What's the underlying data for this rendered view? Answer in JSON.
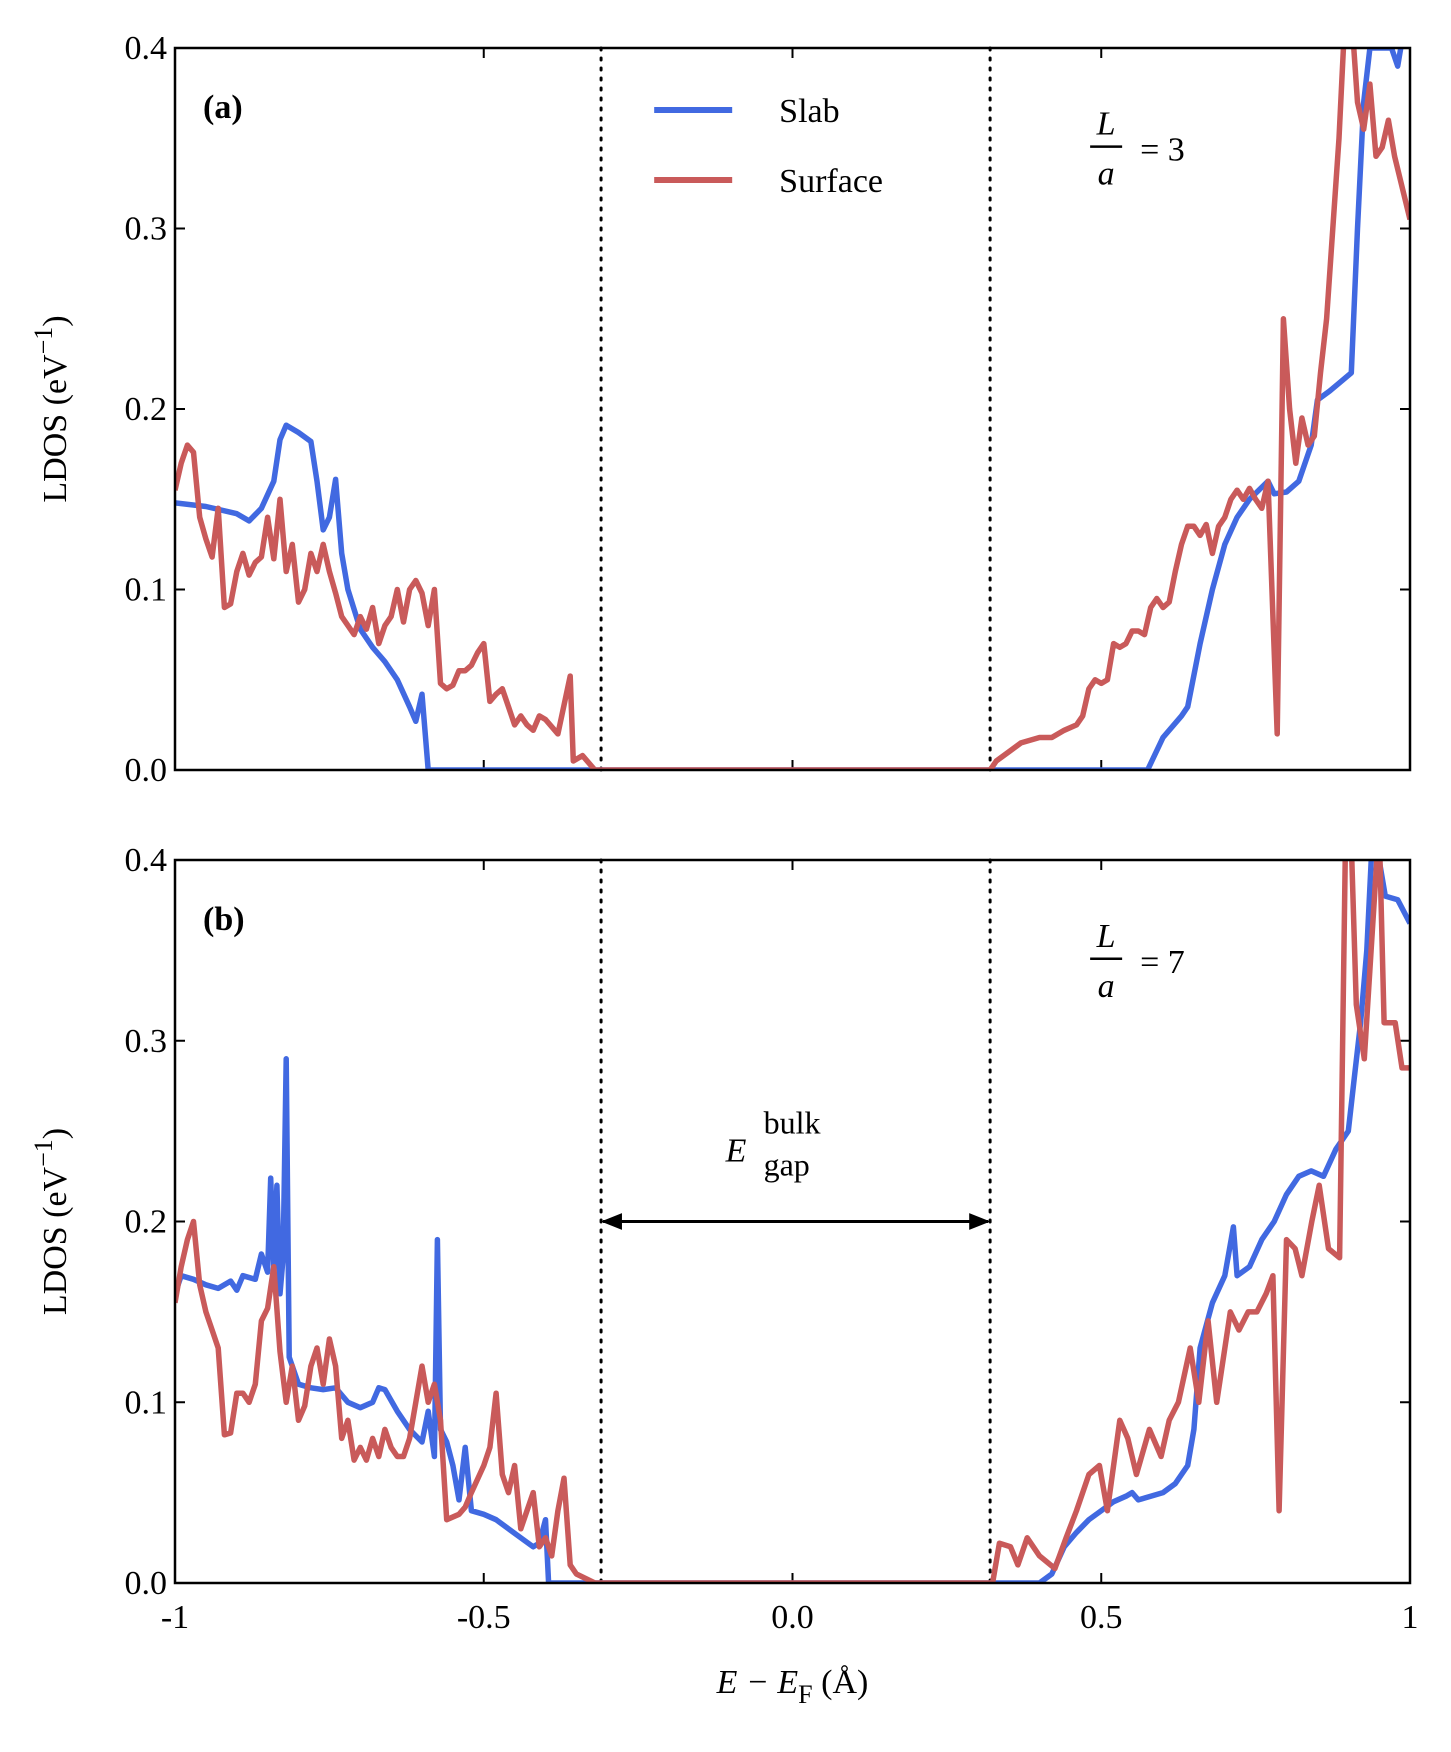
{
  "chart_data": [
    {
      "type": "line",
      "panel_label": "(a)",
      "annotation": {
        "numerator": "L",
        "denominator": "a",
        "text": "= 3"
      },
      "ylabel": [
        "LDOS (eV",
        "−1",
        ")"
      ],
      "xlim": [
        -1,
        1
      ],
      "ylim": [
        0,
        0.4
      ],
      "xticks": [
        -1,
        -0.5,
        0,
        0.5,
        1
      ],
      "yticks": [
        {
          "value": 0,
          "label": "0.0"
        },
        0.1,
        0.2,
        0.3,
        0.4
      ],
      "vlines": [
        -0.31,
        0.32
      ],
      "legend": "upper center",
      "series": [
        {
          "name": "Slab",
          "color": "#4169e1",
          "x": [
            -1,
            -0.95,
            -0.9,
            -0.88,
            -0.86,
            -0.84,
            -0.83,
            -0.82,
            -0.8,
            -0.78,
            -0.77,
            -0.76,
            -0.75,
            -0.74,
            -0.73,
            -0.72,
            -0.7,
            -0.68,
            -0.66,
            -0.64,
            -0.62,
            -0.61,
            -0.6,
            -0.59,
            -0.3,
            0,
            0.3,
            0.575,
            0.6,
            0.63,
            0.64,
            0.66,
            0.68,
            0.7,
            0.72,
            0.74,
            0.77,
            0.78,
            0.8,
            0.82,
            0.84,
            0.85,
            0.87,
            0.905,
            0.915,
            0.925,
            0.935,
            0.97,
            0.98,
            0.99
          ],
          "values": [
            0.148,
            0.146,
            0.142,
            0.138,
            0.145,
            0.16,
            0.183,
            0.191,
            0.187,
            0.182,
            0.16,
            0.133,
            0.14,
            0.161,
            0.12,
            0.1,
            0.078,
            0.068,
            0.06,
            0.05,
            0.035,
            0.027,
            0.042,
            0,
            0,
            0,
            0,
            0,
            0.018,
            0.03,
            0.035,
            0.07,
            0.1,
            0.125,
            0.14,
            0.15,
            0.16,
            0.153,
            0.154,
            0.16,
            0.18,
            0.205,
            0.21,
            0.22,
            0.3,
            0.37,
            0.4,
            0.4,
            0.39,
            0.41
          ]
        },
        {
          "name": "Surface",
          "color": "#c95a5a",
          "x": [
            -1,
            -0.99,
            -0.98,
            -0.97,
            -0.96,
            -0.95,
            -0.94,
            -0.93,
            -0.92,
            -0.91,
            -0.9,
            -0.89,
            -0.88,
            -0.87,
            -0.86,
            -0.85,
            -0.84,
            -0.83,
            -0.82,
            -0.81,
            -0.8,
            -0.79,
            -0.78,
            -0.77,
            -0.76,
            -0.75,
            -0.74,
            -0.73,
            -0.72,
            -0.71,
            -0.7,
            -0.69,
            -0.68,
            -0.67,
            -0.66,
            -0.65,
            -0.64,
            -0.63,
            -0.62,
            -0.61,
            -0.6,
            -0.59,
            -0.58,
            -0.57,
            -0.56,
            -0.55,
            -0.54,
            -0.53,
            -0.52,
            -0.51,
            -0.5,
            -0.49,
            -0.48,
            -0.47,
            -0.46,
            -0.45,
            -0.44,
            -0.43,
            -0.42,
            -0.41,
            -0.4,
            -0.38,
            -0.36,
            -0.355,
            -0.34,
            -0.32,
            0.32,
            0.33,
            0.35,
            0.37,
            0.4,
            0.42,
            0.44,
            0.46,
            0.47,
            0.48,
            0.49,
            0.5,
            0.51,
            0.52,
            0.53,
            0.54,
            0.55,
            0.56,
            0.57,
            0.58,
            0.59,
            0.6,
            0.61,
            0.62,
            0.63,
            0.64,
            0.65,
            0.66,
            0.67,
            0.68,
            0.69,
            0.7,
            0.71,
            0.72,
            0.73,
            0.74,
            0.75,
            0.76,
            0.77,
            0.785,
            0.795,
            0.805,
            0.815,
            0.825,
            0.835,
            0.845,
            0.855,
            0.865,
            0.875,
            0.885,
            0.895,
            0.905,
            0.915,
            0.925,
            0.935,
            0.945,
            0.955,
            0.965,
            0.975,
            1
          ],
          "values": [
            0.155,
            0.17,
            0.18,
            0.176,
            0.14,
            0.128,
            0.118,
            0.145,
            0.09,
            0.092,
            0.11,
            0.12,
            0.108,
            0.115,
            0.118,
            0.14,
            0.117,
            0.15,
            0.11,
            0.125,
            0.093,
            0.1,
            0.12,
            0.11,
            0.125,
            0.11,
            0.098,
            0.085,
            0.08,
            0.075,
            0.085,
            0.078,
            0.09,
            0.07,
            0.08,
            0.085,
            0.1,
            0.082,
            0.1,
            0.105,
            0.098,
            0.08,
            0.1,
            0.048,
            0.045,
            0.047,
            0.055,
            0.055,
            0.058,
            0.065,
            0.07,
            0.038,
            0.042,
            0.045,
            0.035,
            0.025,
            0.03,
            0.025,
            0.022,
            0.03,
            0.028,
            0.02,
            0.052,
            0.005,
            0.008,
            0,
            0,
            0.005,
            0.01,
            0.015,
            0.018,
            0.018,
            0.022,
            0.025,
            0.03,
            0.045,
            0.05,
            0.048,
            0.05,
            0.07,
            0.068,
            0.07,
            0.077,
            0.077,
            0.075,
            0.09,
            0.095,
            0.09,
            0.093,
            0.11,
            0.125,
            0.135,
            0.135,
            0.13,
            0.136,
            0.12,
            0.135,
            0.14,
            0.15,
            0.155,
            0.15,
            0.156,
            0.15,
            0.145,
            0.16,
            0.02,
            0.25,
            0.2,
            0.17,
            0.195,
            0.18,
            0.185,
            0.22,
            0.25,
            0.3,
            0.35,
            0.42,
            0.42,
            0.37,
            0.355,
            0.38,
            0.34,
            0.345,
            0.36,
            0.34,
            0.305
          ]
        }
      ]
    },
    {
      "type": "line",
      "panel_label": "(b)",
      "annotation": {
        "numerator": "L",
        "denominator": "a",
        "text": "= 7"
      },
      "ylabel": [
        "LDOS (eV",
        "−1",
        ")"
      ],
      "xlabel": [
        "E − E",
        "F",
        " (Å)"
      ],
      "xlim": [
        -1,
        1
      ],
      "ylim": [
        0,
        0.4
      ],
      "xticks": [
        -1,
        -0.5,
        {
          "value": 0,
          "label": "0.0"
        },
        0.5,
        1
      ],
      "yticks": [
        {
          "value": 0,
          "label": "0.0"
        },
        0.1,
        0.2,
        0.3,
        0.4
      ],
      "vlines": [
        -0.31,
        0.32
      ],
      "gap_arrow": {
        "y": 0.2,
        "label": [
          "E",
          "gap",
          "bulk"
        ]
      },
      "series": [
        {
          "color": "#4169e1",
          "x": [
            -1,
            -0.99,
            -0.97,
            -0.95,
            -0.93,
            -0.91,
            -0.9,
            -0.89,
            -0.87,
            -0.86,
            -0.85,
            -0.845,
            -0.84,
            -0.835,
            -0.83,
            -0.825,
            -0.82,
            -0.815,
            -0.81,
            -0.8,
            -0.78,
            -0.76,
            -0.74,
            -0.72,
            -0.7,
            -0.68,
            -0.67,
            -0.66,
            -0.64,
            -0.62,
            -0.6,
            -0.59,
            -0.58,
            -0.575,
            -0.57,
            -0.56,
            -0.55,
            -0.54,
            -0.53,
            -0.52,
            -0.5,
            -0.48,
            -0.46,
            -0.44,
            -0.42,
            -0.41,
            -0.4,
            -0.395,
            0,
            0.4,
            0.42,
            0.44,
            0.46,
            0.48,
            0.5,
            0.52,
            0.54,
            0.55,
            0.56,
            0.58,
            0.6,
            0.62,
            0.64,
            0.65,
            0.66,
            0.68,
            0.7,
            0.714,
            0.72,
            0.74,
            0.76,
            0.78,
            0.8,
            0.82,
            0.84,
            0.86,
            0.88,
            0.9,
            0.91,
            0.92,
            0.93,
            0.94,
            0.96,
            0.98,
            1
          ],
          "values": [
            0.16,
            0.17,
            0.168,
            0.165,
            0.163,
            0.167,
            0.162,
            0.17,
            0.168,
            0.182,
            0.172,
            0.224,
            0.175,
            0.22,
            0.16,
            0.18,
            0.29,
            0.125,
            0.12,
            0.11,
            0.108,
            0.107,
            0.108,
            0.1,
            0.097,
            0.1,
            0.108,
            0.107,
            0.095,
            0.085,
            0.078,
            0.095,
            0.07,
            0.19,
            0.085,
            0.078,
            0.065,
            0.046,
            0.075,
            0.04,
            0.038,
            0.035,
            0.03,
            0.025,
            0.02,
            0.022,
            0.035,
            0,
            0,
            0,
            0.005,
            0.02,
            0.028,
            0.035,
            0.04,
            0.045,
            0.048,
            0.05,
            0.046,
            0.048,
            0.05,
            0.055,
            0.065,
            0.085,
            0.13,
            0.155,
            0.17,
            0.197,
            0.17,
            0.175,
            0.19,
            0.2,
            0.215,
            0.225,
            0.228,
            0.225,
            0.24,
            0.25,
            0.28,
            0.31,
            0.35,
            0.42,
            0.38,
            0.378,
            0.365
          ]
        },
        {
          "color": "#c95a5a",
          "x": [
            -1,
            -0.99,
            -0.98,
            -0.97,
            -0.96,
            -0.95,
            -0.94,
            -0.93,
            -0.92,
            -0.91,
            -0.9,
            -0.89,
            -0.88,
            -0.87,
            -0.86,
            -0.85,
            -0.84,
            -0.83,
            -0.82,
            -0.81,
            -0.8,
            -0.79,
            -0.78,
            -0.77,
            -0.76,
            -0.75,
            -0.74,
            -0.73,
            -0.72,
            -0.71,
            -0.7,
            -0.69,
            -0.68,
            -0.67,
            -0.66,
            -0.65,
            -0.64,
            -0.63,
            -0.62,
            -0.61,
            -0.6,
            -0.59,
            -0.58,
            -0.57,
            -0.56,
            -0.54,
            -0.53,
            -0.52,
            -0.5,
            -0.49,
            -0.48,
            -0.47,
            -0.46,
            -0.45,
            -0.44,
            -0.43,
            -0.42,
            -0.41,
            -0.4,
            -0.39,
            -0.38,
            -0.37,
            -0.36,
            -0.35,
            -0.32,
            0.324,
            0.335,
            0.353,
            0.365,
            0.38,
            0.4,
            0.425,
            0.443,
            0.46,
            0.48,
            0.497,
            0.51,
            0.53,
            0.543,
            0.557,
            0.578,
            0.597,
            0.61,
            0.625,
            0.644,
            0.658,
            0.673,
            0.687,
            0.709,
            0.723,
            0.738,
            0.752,
            0.767,
            0.778,
            0.788,
            0.8,
            0.814,
            0.825,
            0.841,
            0.853,
            0.868,
            0.886,
            0.895,
            0.904,
            0.913,
            0.926,
            0.937,
            0.95,
            0.958,
            0.976,
            0.987,
            1
          ],
          "values": [
            0.155,
            0.175,
            0.19,
            0.2,
            0.165,
            0.15,
            0.14,
            0.13,
            0.082,
            0.083,
            0.105,
            0.105,
            0.1,
            0.11,
            0.145,
            0.152,
            0.175,
            0.128,
            0.1,
            0.12,
            0.09,
            0.098,
            0.12,
            0.13,
            0.11,
            0.135,
            0.12,
            0.08,
            0.09,
            0.068,
            0.075,
            0.068,
            0.08,
            0.07,
            0.085,
            0.075,
            0.07,
            0.07,
            0.08,
            0.1,
            0.12,
            0.1,
            0.11,
            0.09,
            0.035,
            0.038,
            0.042,
            0.05,
            0.065,
            0.075,
            0.105,
            0.06,
            0.05,
            0.065,
            0.03,
            0.04,
            0.05,
            0.02,
            0.025,
            0.015,
            0.04,
            0.058,
            0.01,
            0.005,
            0,
            0,
            0.022,
            0.02,
            0.01,
            0.025,
            0.015,
            0.008,
            0.025,
            0.04,
            0.06,
            0.065,
            0.04,
            0.09,
            0.08,
            0.06,
            0.085,
            0.07,
            0.09,
            0.1,
            0.13,
            0.1,
            0.145,
            0.1,
            0.15,
            0.14,
            0.15,
            0.15,
            0.16,
            0.17,
            0.04,
            0.19,
            0.185,
            0.17,
            0.2,
            0.22,
            0.185,
            0.18,
            0.4,
            0.42,
            0.32,
            0.29,
            0.35,
            0.42,
            0.31,
            0.31,
            0.285,
            0.285
          ]
        }
      ]
    }
  ]
}
